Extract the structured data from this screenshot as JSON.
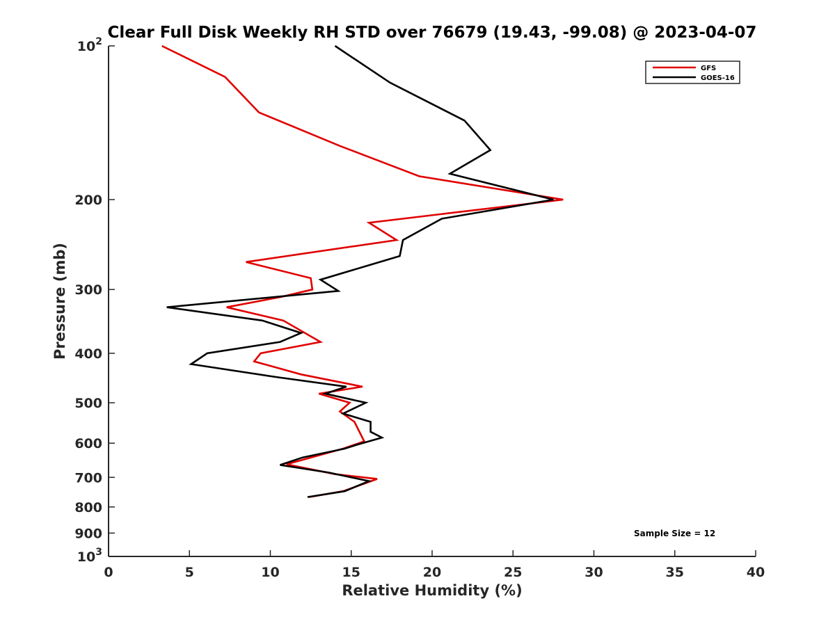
{
  "chart_data": {
    "type": "line",
    "title": "Clear Full Disk Weekly RH STD over 76679 (19.43, -99.08) @ 2023-04-07",
    "xlabel": "Relative Humidity (%)",
    "ylabel": "Pressure (mb)",
    "xlim": [
      0,
      40
    ],
    "ylim": [
      100,
      1000
    ],
    "yscale": "log",
    "y_reversed": true,
    "x_ticks": [
      "0",
      "5",
      "10",
      "15",
      "20",
      "25",
      "30",
      "35",
      "40"
    ],
    "y_tick_values": [
      100,
      200,
      300,
      400,
      500,
      600,
      700,
      800,
      900,
      1000
    ],
    "y_ticks": [
      {
        "base": "10",
        "exp": "2"
      },
      {
        "base": "200",
        "exp": ""
      },
      {
        "base": "300",
        "exp": ""
      },
      {
        "base": "400",
        "exp": ""
      },
      {
        "base": "500",
        "exp": ""
      },
      {
        "base": "600",
        "exp": ""
      },
      {
        "base": "700",
        "exp": ""
      },
      {
        "base": "800",
        "exp": ""
      },
      {
        "base": "900",
        "exp": ""
      },
      {
        "base": "10",
        "exp": "3"
      }
    ],
    "grid": false,
    "legend_position": "top-right",
    "annotation": "Sample Size = 12",
    "series": [
      {
        "name": "GFS",
        "color": "#e00000",
        "points": [
          {
            "x": 3.3,
            "y": 100
          },
          {
            "x": 7.2,
            "y": 115
          },
          {
            "x": 9.3,
            "y": 135
          },
          {
            "x": 14.3,
            "y": 157
          },
          {
            "x": 19.2,
            "y": 180
          },
          {
            "x": 28.1,
            "y": 200
          },
          {
            "x": 16.1,
            "y": 222
          },
          {
            "x": 17.8,
            "y": 240
          },
          {
            "x": 8.5,
            "y": 265
          },
          {
            "x": 12.5,
            "y": 285
          },
          {
            "x": 12.6,
            "y": 300
          },
          {
            "x": 10.7,
            "y": 310
          },
          {
            "x": 7.3,
            "y": 325
          },
          {
            "x": 10.8,
            "y": 345
          },
          {
            "x": 13.1,
            "y": 380
          },
          {
            "x": 9.4,
            "y": 400
          },
          {
            "x": 9.0,
            "y": 415
          },
          {
            "x": 11.9,
            "y": 440
          },
          {
            "x": 15.7,
            "y": 465
          },
          {
            "x": 13.0,
            "y": 480
          },
          {
            "x": 14.9,
            "y": 500
          },
          {
            "x": 14.3,
            "y": 520
          },
          {
            "x": 15.2,
            "y": 545
          },
          {
            "x": 15.8,
            "y": 595
          },
          {
            "x": 14.5,
            "y": 615
          },
          {
            "x": 11.0,
            "y": 660
          },
          {
            "x": 14.0,
            "y": 690
          },
          {
            "x": 16.6,
            "y": 705
          },
          {
            "x": 14.5,
            "y": 745
          },
          {
            "x": 12.4,
            "y": 765
          }
        ]
      },
      {
        "name": "GOES-16",
        "color": "#000000",
        "points": [
          {
            "x": 14.0,
            "y": 100
          },
          {
            "x": 17.4,
            "y": 118
          },
          {
            "x": 22.0,
            "y": 140
          },
          {
            "x": 23.6,
            "y": 160
          },
          {
            "x": 21.1,
            "y": 178
          },
          {
            "x": 27.5,
            "y": 200
          },
          {
            "x": 20.6,
            "y": 218
          },
          {
            "x": 18.2,
            "y": 240
          },
          {
            "x": 18.0,
            "y": 258
          },
          {
            "x": 13.1,
            "y": 287
          },
          {
            "x": 14.2,
            "y": 302
          },
          {
            "x": 3.6,
            "y": 325
          },
          {
            "x": 9.5,
            "y": 345
          },
          {
            "x": 11.9,
            "y": 365
          },
          {
            "x": 10.6,
            "y": 380
          },
          {
            "x": 6.1,
            "y": 400
          },
          {
            "x": 5.1,
            "y": 420
          },
          {
            "x": 10.3,
            "y": 445
          },
          {
            "x": 14.7,
            "y": 465
          },
          {
            "x": 13.4,
            "y": 480
          },
          {
            "x": 15.9,
            "y": 500
          },
          {
            "x": 14.5,
            "y": 525
          },
          {
            "x": 16.2,
            "y": 545
          },
          {
            "x": 16.2,
            "y": 570
          },
          {
            "x": 16.9,
            "y": 585
          },
          {
            "x": 15.3,
            "y": 605
          },
          {
            "x": 14.6,
            "y": 615
          },
          {
            "x": 12.0,
            "y": 640
          },
          {
            "x": 10.6,
            "y": 662
          },
          {
            "x": 13.6,
            "y": 685
          },
          {
            "x": 16.1,
            "y": 712
          },
          {
            "x": 14.6,
            "y": 745
          },
          {
            "x": 12.3,
            "y": 765
          }
        ]
      }
    ]
  }
}
